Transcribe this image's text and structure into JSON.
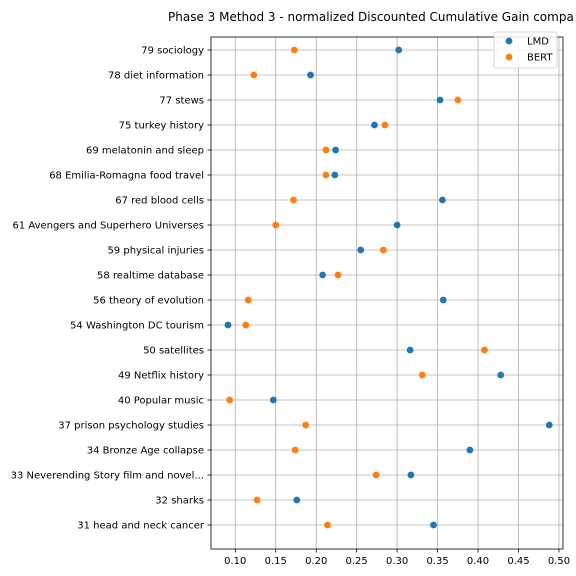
{
  "chart_data": {
    "type": "scatter",
    "title": "Phase 3 Method 3 - normalized Discounted Cumulative Gain compa",
    "xlabel": "",
    "ylabel": "",
    "xlim": [
      0.07,
      0.505
    ],
    "xticks": [
      "0.10",
      "0.15",
      "0.20",
      "0.25",
      "0.30",
      "0.35",
      "0.40",
      "0.45",
      "0.50"
    ],
    "grid": true,
    "legend_position": "top-right",
    "categories": [
      "79 sociology",
      "78 diet information",
      "77 stews",
      "75 turkey history",
      "69 melatonin and sleep",
      "68 Emilia-Romagna food travel",
      "67 red blood cells",
      "61 Avengers and Superhero Universes",
      "59 physical injuries",
      "58 realtime database",
      "56 theory of evolution",
      "54 Washington DC tourism",
      "50 satellites",
      "49 Netflix history",
      "40 Popular music",
      "37 prison psychology studies",
      "34 Bronze Age collapse",
      "33 Neverending Story film and novel...",
      "32 sharks",
      "31 head and neck cancer"
    ],
    "series": [
      {
        "name": "LMD",
        "color": "#1f77b4",
        "values": [
          0.302,
          0.193,
          0.353,
          0.272,
          0.224,
          0.223,
          0.356,
          0.3,
          0.255,
          0.208,
          0.357,
          0.091,
          0.316,
          0.428,
          0.147,
          0.488,
          0.39,
          0.317,
          0.176,
          0.345
        ]
      },
      {
        "name": "BERT",
        "color": "#ff7f0e",
        "values": [
          0.173,
          0.123,
          0.375,
          0.285,
          0.212,
          0.212,
          0.172,
          0.15,
          0.283,
          0.227,
          0.116,
          0.113,
          0.408,
          0.331,
          0.093,
          0.187,
          0.174,
          0.274,
          0.127,
          0.214
        ]
      }
    ]
  }
}
